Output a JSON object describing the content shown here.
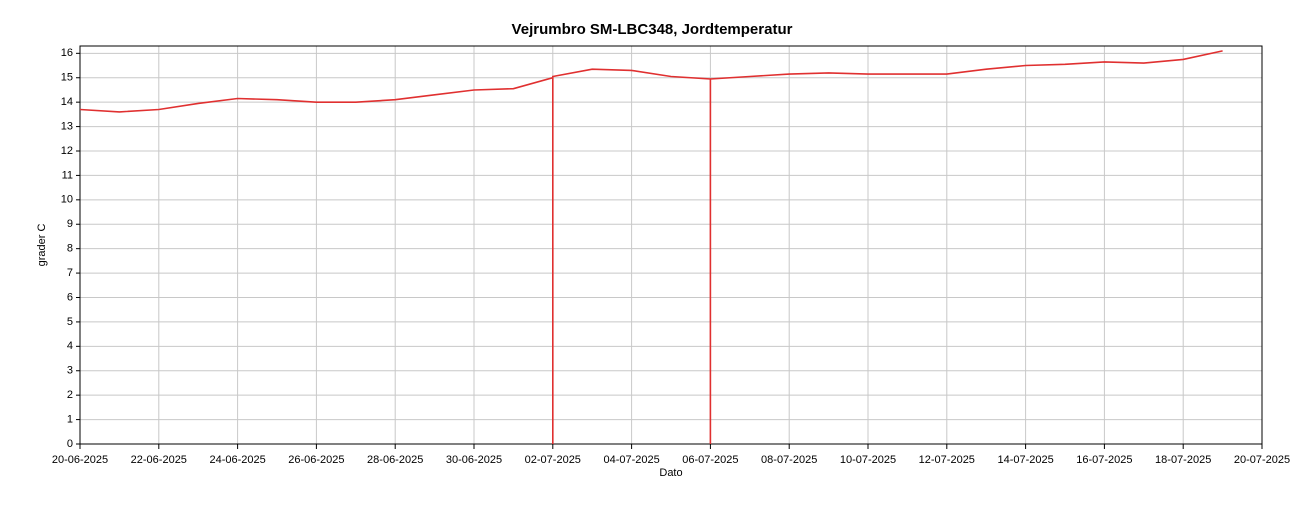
{
  "chart_data": {
    "type": "line",
    "title": "Vejrumbro SM-LBC348, Jordtemperatur",
    "x_label": "Dato",
    "y_label": "grader C",
    "x": [
      "20-06-2025",
      "21-06-2025",
      "22-06-2025",
      "23-06-2025",
      "24-06-2025",
      "25-06-2025",
      "26-06-2025",
      "27-06-2025",
      "28-06-2025",
      "29-06-2025",
      "30-06-2025",
      "01-07-2025",
      "02-07-2025",
      "02-07-2025",
      "02-07-2025",
      "03-07-2025",
      "04-07-2025",
      "05-07-2025",
      "06-07-2025",
      "06-07-2025",
      "06-07-2025",
      "07-07-2025",
      "08-07-2025",
      "09-07-2025",
      "10-07-2025",
      "11-07-2025",
      "12-07-2025",
      "13-07-2025",
      "14-07-2025",
      "15-07-2025",
      "16-07-2025",
      "17-07-2025",
      "18-07-2025",
      "19-07-2025"
    ],
    "series": [
      {
        "name": "Jordtemperatur",
        "color": "#e03030",
        "values": [
          13.7,
          13.6,
          13.7,
          13.95,
          14.15,
          14.1,
          14.0,
          14.0,
          14.1,
          14.3,
          14.5,
          14.55,
          15.0,
          0,
          15.05,
          15.35,
          15.3,
          15.05,
          14.95,
          0,
          14.95,
          15.05,
          15.15,
          15.2,
          15.15,
          15.15,
          15.15,
          15.35,
          15.5,
          15.55,
          15.65,
          15.6,
          15.75,
          16.1
        ]
      }
    ],
    "xlim": [
      "20-06-2025",
      "20-07-2025"
    ],
    "xticks": [
      "20-06-2025",
      "22-06-2025",
      "24-06-2025",
      "26-06-2025",
      "28-06-2025",
      "30-06-2025",
      "02-07-2025",
      "04-07-2025",
      "06-07-2025",
      "08-07-2025",
      "10-07-2025",
      "12-07-2025",
      "14-07-2025",
      "16-07-2025",
      "18-07-2025",
      "20-07-2025"
    ],
    "ylim": [
      0,
      16.3
    ],
    "yticks": [
      0,
      1,
      2,
      3,
      4,
      5,
      6,
      7,
      8,
      9,
      10,
      11,
      12,
      13,
      14,
      15,
      16
    ],
    "grid": true
  }
}
